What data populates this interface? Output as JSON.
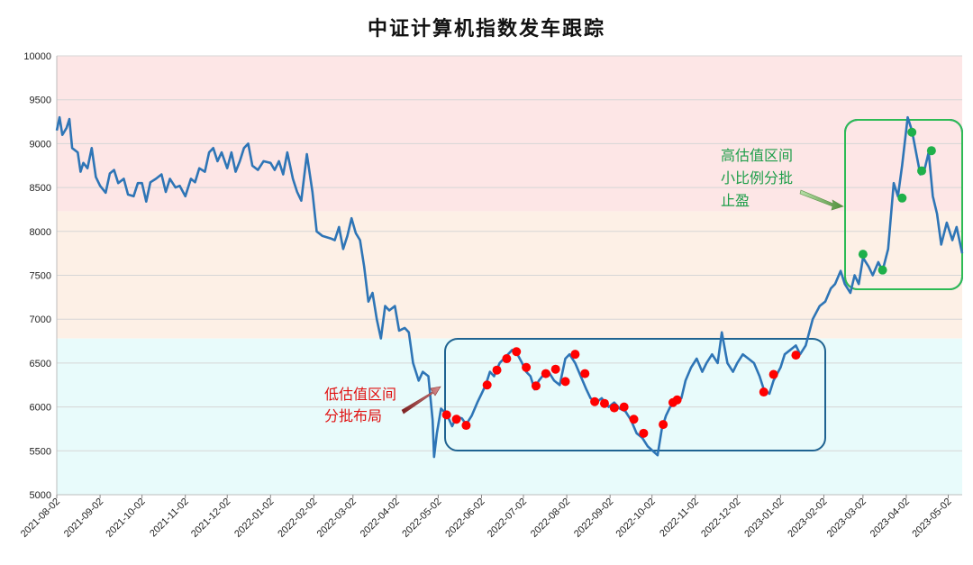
{
  "chart_data": {
    "type": "line",
    "title": "中证计算机指数发车跟踪",
    "x_range": [
      "2021-08-02",
      "2023-05-12"
    ],
    "ylim": [
      5000,
      10000
    ],
    "y_ticks": [
      5000,
      5500,
      6000,
      6500,
      7000,
      7500,
      8000,
      8500,
      9000,
      9500,
      10000
    ],
    "x_ticks": [
      "2021-08-02",
      "2021-09-02",
      "2021-10-02",
      "2021-11-02",
      "2021-12-02",
      "2022-01-02",
      "2022-02-02",
      "2022-03-02",
      "2022-04-02",
      "2022-05-02",
      "2022-06-02",
      "2022-07-02",
      "2022-08-02",
      "2022-09-02",
      "2022-10-02",
      "2022-11-02",
      "2022-12-02",
      "2023-01-02",
      "2023-02-02",
      "2023-03-02",
      "2023-04-02",
      "2023-05-02"
    ],
    "grid": true,
    "valuation_bands": [
      {
        "label": "high",
        "from": 8230,
        "to": 10000,
        "color": "#fde6e6"
      },
      {
        "label": "mid",
        "from": 6780,
        "to": 8230,
        "color": "#fdf0e6"
      },
      {
        "label": "low",
        "from": 5000,
        "to": 6780,
        "color": "#e8fbfb"
      }
    ],
    "series": [
      {
        "type": "line",
        "color": "#2e75b6",
        "points": [
          [
            "2021-08-02",
            9150
          ],
          [
            "2021-08-04",
            9300
          ],
          [
            "2021-08-06",
            9100
          ],
          [
            "2021-08-09",
            9180
          ],
          [
            "2021-08-11",
            9280
          ],
          [
            "2021-08-13",
            8950
          ],
          [
            "2021-08-17",
            8900
          ],
          [
            "2021-08-19",
            8680
          ],
          [
            "2021-08-21",
            8780
          ],
          [
            "2021-08-24",
            8720
          ],
          [
            "2021-08-27",
            8950
          ],
          [
            "2021-08-30",
            8620
          ],
          [
            "2021-09-02",
            8520
          ],
          [
            "2021-09-06",
            8440
          ],
          [
            "2021-09-09",
            8660
          ],
          [
            "2021-09-12",
            8700
          ],
          [
            "2021-09-15",
            8550
          ],
          [
            "2021-09-19",
            8600
          ],
          [
            "2021-09-22",
            8420
          ],
          [
            "2021-09-26",
            8400
          ],
          [
            "2021-09-29",
            8550
          ],
          [
            "2021-10-02",
            8550
          ],
          [
            "2021-10-05",
            8340
          ],
          [
            "2021-10-08",
            8560
          ],
          [
            "2021-10-12",
            8600
          ],
          [
            "2021-10-16",
            8650
          ],
          [
            "2021-10-19",
            8450
          ],
          [
            "2021-10-22",
            8600
          ],
          [
            "2021-10-26",
            8500
          ],
          [
            "2021-10-29",
            8520
          ],
          [
            "2021-11-02",
            8400
          ],
          [
            "2021-11-06",
            8600
          ],
          [
            "2021-11-09",
            8560
          ],
          [
            "2021-11-12",
            8720
          ],
          [
            "2021-11-16",
            8680
          ],
          [
            "2021-11-19",
            8900
          ],
          [
            "2021-11-22",
            8950
          ],
          [
            "2021-11-25",
            8800
          ],
          [
            "2021-11-28",
            8900
          ],
          [
            "2021-12-02",
            8720
          ],
          [
            "2021-12-05",
            8900
          ],
          [
            "2021-12-08",
            8680
          ],
          [
            "2021-12-11",
            8800
          ],
          [
            "2021-12-14",
            8950
          ],
          [
            "2021-12-17",
            9000
          ],
          [
            "2021-12-20",
            8750
          ],
          [
            "2021-12-24",
            8700
          ],
          [
            "2021-12-28",
            8800
          ],
          [
            "2022-01-02",
            8780
          ],
          [
            "2022-01-05",
            8700
          ],
          [
            "2022-01-08",
            8800
          ],
          [
            "2022-01-11",
            8650
          ],
          [
            "2022-01-14",
            8900
          ],
          [
            "2022-01-18",
            8600
          ],
          [
            "2022-01-21",
            8450
          ],
          [
            "2022-01-24",
            8350
          ],
          [
            "2022-01-28",
            8880
          ],
          [
            "2022-02-01",
            8450
          ],
          [
            "2022-02-04",
            8000
          ],
          [
            "2022-02-08",
            7950
          ],
          [
            "2022-02-14",
            7920
          ],
          [
            "2022-02-17",
            7900
          ],
          [
            "2022-02-20",
            8050
          ],
          [
            "2022-02-23",
            7800
          ],
          [
            "2022-02-26",
            7950
          ],
          [
            "2022-03-01",
            8150
          ],
          [
            "2022-03-04",
            7980
          ],
          [
            "2022-03-07",
            7900
          ],
          [
            "2022-03-10",
            7600
          ],
          [
            "2022-03-13",
            7200
          ],
          [
            "2022-03-16",
            7300
          ],
          [
            "2022-03-19",
            7000
          ],
          [
            "2022-03-22",
            6780
          ],
          [
            "2022-03-25",
            7150
          ],
          [
            "2022-03-28",
            7100
          ],
          [
            "2022-04-01",
            7150
          ],
          [
            "2022-04-04",
            6870
          ],
          [
            "2022-04-08",
            6900
          ],
          [
            "2022-04-11",
            6850
          ],
          [
            "2022-04-14",
            6500
          ],
          [
            "2022-04-18",
            6300
          ],
          [
            "2022-04-21",
            6400
          ],
          [
            "2022-04-25",
            6350
          ],
          [
            "2022-04-28",
            5850
          ],
          [
            "2022-04-29",
            5430
          ],
          [
            "2022-05-01",
            5700
          ],
          [
            "2022-05-04",
            5980
          ],
          [
            "2022-05-08",
            5920
          ],
          [
            "2022-05-12",
            5780
          ],
          [
            "2022-05-15",
            5890
          ],
          [
            "2022-05-19",
            5870
          ],
          [
            "2022-05-22",
            5800
          ],
          [
            "2022-05-26",
            5900
          ],
          [
            "2022-05-30",
            6050
          ],
          [
            "2022-06-02",
            6150
          ],
          [
            "2022-06-05",
            6250
          ],
          [
            "2022-06-08",
            6400
          ],
          [
            "2022-06-11",
            6350
          ],
          [
            "2022-06-15",
            6500
          ],
          [
            "2022-06-18",
            6550
          ],
          [
            "2022-06-21",
            6600
          ],
          [
            "2022-06-24",
            6650
          ],
          [
            "2022-06-27",
            6620
          ],
          [
            "2022-07-01",
            6500
          ],
          [
            "2022-07-04",
            6400
          ],
          [
            "2022-07-07",
            6350
          ],
          [
            "2022-07-10",
            6200
          ],
          [
            "2022-07-13",
            6300
          ],
          [
            "2022-07-17",
            6380
          ],
          [
            "2022-07-20",
            6400
          ],
          [
            "2022-07-24",
            6300
          ],
          [
            "2022-07-28",
            6250
          ],
          [
            "2022-08-01",
            6550
          ],
          [
            "2022-08-04",
            6600
          ],
          [
            "2022-08-08",
            6500
          ],
          [
            "2022-08-12",
            6350
          ],
          [
            "2022-08-16",
            6200
          ],
          [
            "2022-08-19",
            6100
          ],
          [
            "2022-08-23",
            6050
          ],
          [
            "2022-08-27",
            6100
          ],
          [
            "2022-09-01",
            6000
          ],
          [
            "2022-09-05",
            6050
          ],
          [
            "2022-09-09",
            5980
          ],
          [
            "2022-09-13",
            5950
          ],
          [
            "2022-09-17",
            5850
          ],
          [
            "2022-09-21",
            5700
          ],
          [
            "2022-09-25",
            5650
          ],
          [
            "2022-09-29",
            5550
          ],
          [
            "2022-10-06",
            5450
          ],
          [
            "2022-10-09",
            5750
          ],
          [
            "2022-10-12",
            5900
          ],
          [
            "2022-10-15",
            6000
          ],
          [
            "2022-10-19",
            6050
          ],
          [
            "2022-10-23",
            6100
          ],
          [
            "2022-10-26",
            6300
          ],
          [
            "2022-10-30",
            6450
          ],
          [
            "2022-11-03",
            6550
          ],
          [
            "2022-11-07",
            6400
          ],
          [
            "2022-11-10",
            6500
          ],
          [
            "2022-11-14",
            6600
          ],
          [
            "2022-11-18",
            6500
          ],
          [
            "2022-11-21",
            6850
          ],
          [
            "2022-11-25",
            6500
          ],
          [
            "2022-11-29",
            6400
          ],
          [
            "2022-12-02",
            6500
          ],
          [
            "2022-12-06",
            6600
          ],
          [
            "2022-12-10",
            6550
          ],
          [
            "2022-12-14",
            6500
          ],
          [
            "2022-12-18",
            6350
          ],
          [
            "2022-12-21",
            6200
          ],
          [
            "2022-12-25",
            6150
          ],
          [
            "2022-12-28",
            6300
          ],
          [
            "2023-01-02",
            6450
          ],
          [
            "2023-01-05",
            6600
          ],
          [
            "2023-01-09",
            6650
          ],
          [
            "2023-01-13",
            6700
          ],
          [
            "2023-01-16",
            6600
          ],
          [
            "2023-01-20",
            6700
          ],
          [
            "2023-01-25",
            7000
          ],
          [
            "2023-01-30",
            7150
          ],
          [
            "2023-02-03",
            7200
          ],
          [
            "2023-02-07",
            7350
          ],
          [
            "2023-02-10",
            7400
          ],
          [
            "2023-02-14",
            7550
          ],
          [
            "2023-02-17",
            7400
          ],
          [
            "2023-02-21",
            7300
          ],
          [
            "2023-02-24",
            7500
          ],
          [
            "2023-02-27",
            7400
          ],
          [
            "2023-03-02",
            7700
          ],
          [
            "2023-03-06",
            7600
          ],
          [
            "2023-03-09",
            7500
          ],
          [
            "2023-03-13",
            7650
          ],
          [
            "2023-03-16",
            7550
          ],
          [
            "2023-03-20",
            7800
          ],
          [
            "2023-03-24",
            8550
          ],
          [
            "2023-03-27",
            8400
          ],
          [
            "2023-03-30",
            8750
          ],
          [
            "2023-04-03",
            9300
          ],
          [
            "2023-04-06",
            9150
          ],
          [
            "2023-04-09",
            8900
          ],
          [
            "2023-04-12",
            8650
          ],
          [
            "2023-04-15",
            8700
          ],
          [
            "2023-04-18",
            8900
          ],
          [
            "2023-04-21",
            8400
          ],
          [
            "2023-04-24",
            8200
          ],
          [
            "2023-04-27",
            7850
          ],
          [
            "2023-05-01",
            8100
          ],
          [
            "2023-05-05",
            7900
          ],
          [
            "2023-05-08",
            8050
          ],
          [
            "2023-05-12",
            7750
          ]
        ]
      }
    ],
    "low_markers": [
      [
        "2022-05-08",
        5910
      ],
      [
        "2022-05-15",
        5860
      ],
      [
        "2022-05-22",
        5790
      ],
      [
        "2022-06-06",
        6250
      ],
      [
        "2022-06-13",
        6420
      ],
      [
        "2022-06-20",
        6550
      ],
      [
        "2022-06-27",
        6630
      ],
      [
        "2022-07-04",
        6450
      ],
      [
        "2022-07-11",
        6240
      ],
      [
        "2022-07-18",
        6380
      ],
      [
        "2022-07-25",
        6430
      ],
      [
        "2022-08-01",
        6290
      ],
      [
        "2022-08-08",
        6600
      ],
      [
        "2022-08-15",
        6380
      ],
      [
        "2022-08-22",
        6060
      ],
      [
        "2022-08-29",
        6040
      ],
      [
        "2022-09-05",
        5990
      ],
      [
        "2022-09-12",
        6000
      ],
      [
        "2022-09-19",
        5860
      ],
      [
        "2022-09-26",
        5700
      ],
      [
        "2022-10-10",
        5800
      ],
      [
        "2022-10-17",
        6050
      ],
      [
        "2022-10-20",
        6080
      ],
      [
        "2022-12-21",
        6170
      ],
      [
        "2022-12-28",
        6370
      ],
      [
        "2023-01-13",
        6590
      ]
    ],
    "high_markers": [
      [
        "2023-03-02",
        7740
      ],
      [
        "2023-03-16",
        7560
      ],
      [
        "2023-03-30",
        8380
      ],
      [
        "2023-04-06",
        9130
      ],
      [
        "2023-04-13",
        8690
      ],
      [
        "2023-04-20",
        8920
      ]
    ],
    "annotations": {
      "low_text": [
        "低估值区间",
        "分批布局"
      ],
      "high_text": [
        "高估值区间",
        "小比例分批",
        "止盈"
      ]
    }
  }
}
